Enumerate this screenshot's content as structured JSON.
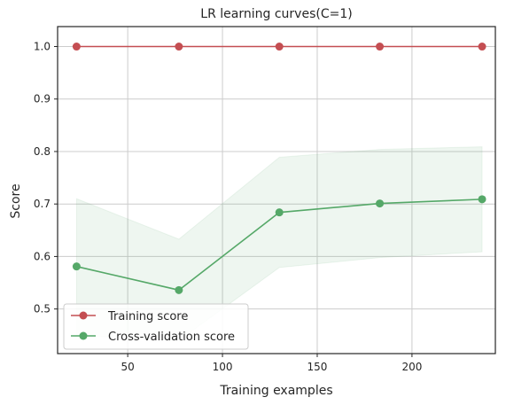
{
  "chart_data": {
    "type": "line",
    "title": "LR learning curves(C=1)",
    "xlabel": "Training examples",
    "ylabel": "Score",
    "xlim": [
      13,
      244
    ],
    "ylim": [
      0.415,
      1.038
    ],
    "xticks": [
      50,
      100,
      150,
      200
    ],
    "yticks": [
      0.5,
      0.6,
      0.7,
      0.8,
      0.9,
      1.0
    ],
    "xtick_labels": [
      "50",
      "100",
      "150",
      "200"
    ],
    "ytick_labels": [
      "0.5",
      "0.6",
      "0.7",
      "0.8",
      "0.9",
      "1.0"
    ],
    "grid": true,
    "legend_position": "lower-left",
    "x": [
      23,
      77,
      130,
      183,
      237
    ],
    "series": [
      {
        "name": "Training score",
        "color": "#c44e52",
        "values": [
          1.0,
          1.0,
          1.0,
          1.0,
          1.0
        ],
        "band_lower": [
          1.0,
          1.0,
          1.0,
          1.0,
          1.0
        ],
        "band_upper": [
          1.0,
          1.0,
          1.0,
          1.0,
          1.0
        ]
      },
      {
        "name": "Cross-validation score",
        "color": "#55a868",
        "values": [
          0.581,
          0.536,
          0.684,
          0.701,
          0.709
        ],
        "band_lower": [
          0.45,
          0.44,
          0.579,
          0.598,
          0.609
        ],
        "band_upper": [
          0.71,
          0.633,
          0.789,
          0.804,
          0.809
        ]
      }
    ]
  }
}
